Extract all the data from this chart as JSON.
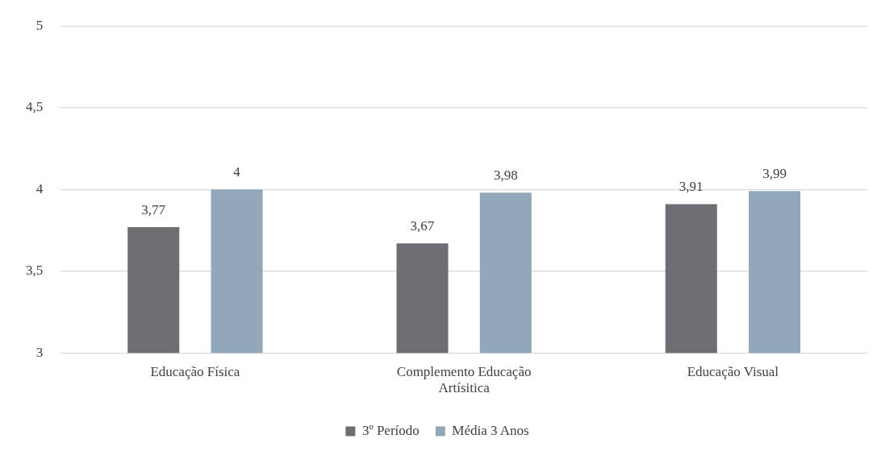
{
  "chart_data": {
    "type": "bar",
    "categories": [
      "Educação Física",
      "Complemento Educação Artísitica",
      "Educação Visual"
    ],
    "series": [
      {
        "name": "3º Período",
        "color": "#6e6d72",
        "values": [
          3.77,
          3.67,
          3.91
        ],
        "value_labels": [
          "3,77",
          "3,67",
          "3,91"
        ]
      },
      {
        "name": "Média 3 Anos",
        "color": "#91a8b8",
        "values": [
          4,
          3.98,
          3.99
        ],
        "value_labels": [
          "4",
          "3,98",
          "3,99"
        ]
      }
    ],
    "ylim": [
      3,
      5
    ],
    "yticks": [
      3,
      {
        "value": 3.5,
        "label": "3,5"
      },
      4,
      {
        "value": 4.5,
        "label": "4,5"
      },
      5
    ],
    "grid": "y",
    "legend": "bottom"
  }
}
